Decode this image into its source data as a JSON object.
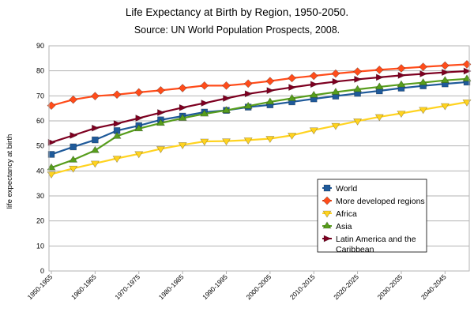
{
  "chart_data": {
    "type": "line",
    "title": "Life Expectancy at Birth by Region, 1950-2050.",
    "subtitle": "Source: UN World Population Prospects, 2008.",
    "xlabel": "",
    "ylabel": "life expectancy at birth",
    "ylim": [
      0,
      90
    ],
    "yticks": [
      0,
      10,
      20,
      30,
      40,
      50,
      60,
      70,
      80,
      90
    ],
    "grid": "horizontal",
    "legend_position": "bottom-right",
    "categories": [
      "1950-1955",
      "1955-1960",
      "1960-1965",
      "1965-1970",
      "1970-1975",
      "1975-1980",
      "1980-1985",
      "1985-1990",
      "1990-1995",
      "1995-2000",
      "2000-2005",
      "2005-2010",
      "2010-2015",
      "2015-2020",
      "2020-2025",
      "2025-2030",
      "2030-2035",
      "2035-2040",
      "2040-2045",
      "2045-2050"
    ],
    "visible_xtick_labels": [
      "1950-1955",
      "1960-1965",
      "1970-1975",
      "1980-1985",
      "1990-1995",
      "2000-2005",
      "2010-2015",
      "2020-2025",
      "2030-2035",
      "2040-2045"
    ],
    "series": [
      {
        "name": "World",
        "color": "#1f5a9a",
        "marker": "square",
        "values": [
          46.6,
          49.6,
          52.4,
          56.1,
          58.1,
          60.4,
          61.9,
          63.5,
          64.2,
          65.5,
          66.4,
          67.6,
          68.8,
          69.9,
          71.0,
          72.0,
          73.1,
          74.0,
          74.8,
          75.5
        ]
      },
      {
        "name": "More developed regions",
        "color": "#ff4c1a",
        "marker": "diamond",
        "values": [
          66.1,
          68.5,
          69.9,
          70.5,
          71.4,
          72.2,
          73.1,
          74.1,
          74.1,
          74.9,
          75.9,
          77.1,
          78.0,
          78.9,
          79.7,
          80.4,
          81.0,
          81.6,
          82.1,
          82.6
        ]
      },
      {
        "name": "Africa",
        "color": "#ffd320",
        "marker": "triangle-down",
        "values": [
          38.7,
          41.0,
          43.0,
          45.0,
          46.8,
          48.8,
          50.4,
          51.8,
          51.9,
          52.3,
          52.9,
          54.2,
          56.3,
          58.1,
          59.9,
          61.6,
          63.0,
          64.5,
          66.0,
          67.5
        ]
      },
      {
        "name": "Asia",
        "color": "#579d1c",
        "marker": "triangle-up",
        "values": [
          41.3,
          44.4,
          48.2,
          53.9,
          56.9,
          59.1,
          61.1,
          62.8,
          64.2,
          65.9,
          67.6,
          69.0,
          70.3,
          71.5,
          72.6,
          73.6,
          74.5,
          75.3,
          76.2,
          76.8
        ]
      },
      {
        "name": "Latin America and the Caribbean",
        "color": "#7e0021",
        "marker": "arrow-right",
        "values": [
          51.4,
          54.2,
          57.1,
          58.9,
          61.1,
          63.3,
          65.3,
          67.1,
          69.0,
          70.8,
          72.1,
          73.4,
          74.6,
          75.7,
          76.6,
          77.4,
          78.2,
          78.8,
          79.4,
          79.9
        ]
      }
    ]
  }
}
